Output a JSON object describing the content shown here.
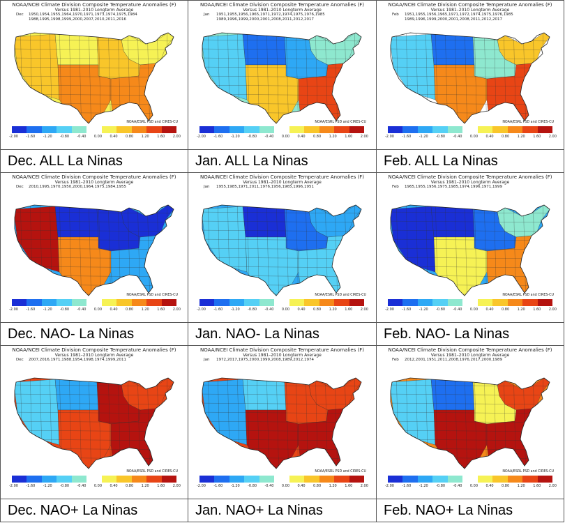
{
  "header_line1": "NOAA/NCEI Climate Division Composite Temperature Anomalies (F)",
  "header_line2": "Versus 1981–2010 Longterm Average",
  "credit": "NOAA/ESRL PSD and CIRES-CU",
  "legend": {
    "ticks": [
      "-2.00",
      "-1.60",
      "-1.20",
      "-0.80",
      "-0.40",
      "0.00",
      "0.40",
      "0.80",
      "1.20",
      "1.60",
      "2.00"
    ],
    "colors": [
      "#1a2fd6",
      "#1e6ff0",
      "#2ea8f5",
      "#55d0f5",
      "#8ee8cf",
      "#ffffff",
      "#f6f255",
      "#f9c62a",
      "#f6891a",
      "#e84515",
      "#b5130f"
    ]
  },
  "panels": [
    {
      "caption": "Dec. ALL La Ninas",
      "month": "Dec",
      "years": "1950,1954,1955,1964,1970,1971,1973,1974,1975,1984 1988,1995,1998,1999,2000,2007,2010,2011,2016",
      "base_level": 1,
      "regions": {
        "west": 2,
        "northern_plains": 1,
        "northeast": 1,
        "midwest": 2,
        "south": 3,
        "southeast": 3
      }
    },
    {
      "caption": "Jan. ALL La Ninas",
      "month": "Jan",
      "years": "1951,1955,1956,1965,1971,1972,1974,1975,1976,1985 1989,1996,1999,2000,2001,2008,2011,2012,2017",
      "base_level": -1,
      "regions": {
        "west": -2,
        "northern_plains": -4,
        "northeast": -1,
        "midwest": -3,
        "south": 2,
        "southeast": 4
      }
    },
    {
      "caption": "Feb. ALL La Ninas",
      "month": "Feb",
      "years": "1951,1955,1956,1965,1971,1972,1974,1975,1976,1985 1989,1996,1999,2000,2001,2008,2011,2012,2017",
      "base_level": 0,
      "regions": {
        "west": -2,
        "northern_plains": -4,
        "northeast": 2,
        "midwest": -1,
        "south": 3,
        "southeast": 4
      }
    },
    {
      "caption": "Dec. NAO- La Ninas",
      "month": "Dec",
      "years": "2010,1995,1970,1950,2000,1964,1975,1984,1955",
      "base_level": -3,
      "regions": {
        "west": 5,
        "northern_plains": -5,
        "northeast": -5,
        "midwest": -5,
        "south": 3,
        "southeast": -3
      }
    },
    {
      "caption": "Jan. NAO- La Ninas",
      "month": "Jan",
      "years": "1955,1985,1971,2011,1976,1956,1965,1996,1951",
      "base_level": -3,
      "regions": {
        "west": -2,
        "northern_plains": -5,
        "northeast": -3,
        "midwest": -4,
        "south": -2,
        "southeast": -2
      }
    },
    {
      "caption": "Feb. NAO- La Ninas",
      "month": "Feb",
      "years": "1965,1955,1956,1975,1985,1974,1996,1971,1999",
      "base_level": -3,
      "regions": {
        "west": -5,
        "northern_plains": -5,
        "northeast": -1,
        "midwest": -4,
        "south": 1,
        "southeast": 3
      }
    },
    {
      "caption": "Dec. NAO+ La Ninas",
      "month": "Dec",
      "years": "2007,2016,1971,1988,1954,1998,1974,1999,2011",
      "base_level": 4,
      "regions": {
        "west": -2,
        "northern_plains": -3,
        "northeast": 4,
        "midwest": 5,
        "south": 4,
        "southeast": 5
      }
    },
    {
      "caption": "Jan. NAO+ La Ninas",
      "month": "Jan",
      "years": "1972,2017,1975,2000,1999,2008,1989,2012,1974",
      "base_level": 4,
      "regions": {
        "west": -3,
        "northern_plains": -2,
        "northeast": 4,
        "midwest": 4,
        "south": 5,
        "southeast": 5
      }
    },
    {
      "caption": "Feb. NAO+ La Ninas",
      "month": "Feb",
      "years": "2012,2001,1951,2011,2008,1976,2017,2000,1989",
      "base_level": 3,
      "regions": {
        "west": -2,
        "northern_plains": -4,
        "northeast": 4,
        "midwest": 1,
        "south": 5,
        "southeast": 5
      }
    }
  ]
}
